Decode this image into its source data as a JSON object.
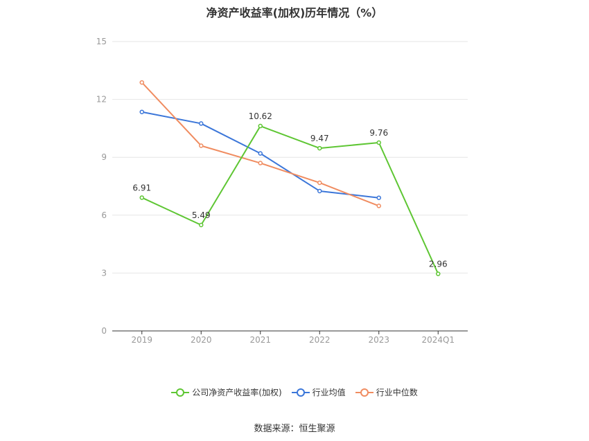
{
  "chart_data": {
    "type": "line",
    "title": "净资产收益率(加权)历年情况（%）",
    "categories": [
      "2019",
      "2020",
      "2021",
      "2022",
      "2023",
      "2024Q1"
    ],
    "ylim": [
      0,
      15
    ],
    "yticks": [
      "0",
      "3",
      "6",
      "9",
      "12",
      "15"
    ],
    "grid": true,
    "legend_position": "bottom-center",
    "series": [
      {
        "name": "公司净资产收益率(加权)",
        "color": "#5ec633",
        "values": [
          6.91,
          5.49,
          10.62,
          9.47,
          9.76,
          2.96
        ],
        "labels": [
          "6.91",
          "5.49",
          "10.62",
          "9.47",
          "9.76",
          "2.96"
        ]
      },
      {
        "name": "行业均值",
        "color": "#3b76d9",
        "values": [
          11.35,
          10.75,
          9.2,
          7.25,
          6.9,
          null
        ]
      },
      {
        "name": "行业中位数",
        "color": "#f08c60",
        "values": [
          12.88,
          9.6,
          8.7,
          7.68,
          6.48,
          null
        ]
      }
    ]
  },
  "source": "数据来源：恒生聚源"
}
